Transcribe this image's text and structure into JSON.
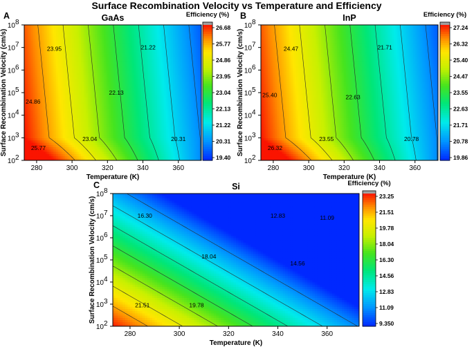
{
  "title": "Surface Recombination Velocity vs Temperature and Efficiency",
  "chart_data": [
    {
      "type": "heatmap",
      "panel_label": "A",
      "title": "GaAs",
      "xlabel": "Temperature (K)",
      "ylabel": "Surface Recombination Velocity (cm/s)",
      "xlim": [
        273,
        373
      ],
      "ylim_exp": [
        2,
        8
      ],
      "y_scale": "log",
      "x_ticks": [
        "280",
        "300",
        "320",
        "340",
        "360"
      ],
      "x_tick_values": [
        280,
        300,
        320,
        340,
        360
      ],
      "y_ticks": [
        {
          "base": "10",
          "exp": "2"
        },
        {
          "base": "10",
          "exp": "3"
        },
        {
          "base": "10",
          "exp": "4"
        },
        {
          "base": "10",
          "exp": "5"
        },
        {
          "base": "10",
          "exp": "6"
        },
        {
          "base": "10",
          "exp": "7"
        },
        {
          "base": "10",
          "exp": "8"
        }
      ],
      "colorbar_title": "Efficiency (%)",
      "colorbar_ticks": [
        "26.68",
        "25.77",
        "24.86",
        "23.95",
        "23.04",
        "22.13",
        "21.22",
        "20.31",
        "19.40"
      ],
      "zmin": 19.4,
      "zmax": 26.68,
      "model": {
        "z_hot": 26.68,
        "z_cold": 19.4,
        "low_s_boost": 1.3,
        "s_knee_exp": 2.9,
        "s_slope": 0.045
      },
      "contour_levels": [
        25.77,
        24.86,
        23.95,
        23.04,
        22.13,
        21.22,
        20.31
      ],
      "contour_labels": [
        {
          "text": "25.77",
          "x": 281,
          "y_exp": 2.55
        },
        {
          "text": "24.86",
          "x": 278,
          "y_exp": 4.6
        },
        {
          "text": "23.95",
          "x": 290,
          "y_exp": 6.95
        },
        {
          "text": "23.04",
          "x": 310,
          "y_exp": 2.95
        },
        {
          "text": "22.13",
          "x": 325,
          "y_exp": 5.0
        },
        {
          "text": "21.22",
          "x": 343,
          "y_exp": 7.0
        },
        {
          "text": "20.31",
          "x": 360,
          "y_exp": 2.95
        }
      ]
    },
    {
      "type": "heatmap",
      "panel_label": "B",
      "title": "InP",
      "xlabel": "Temperature (K)",
      "ylabel": "Surface Recombination Velocity (cm/s)",
      "xlim": [
        273,
        373
      ],
      "ylim_exp": [
        2,
        8
      ],
      "y_scale": "log",
      "x_ticks": [
        "280",
        "300",
        "320",
        "340",
        "360"
      ],
      "x_tick_values": [
        280,
        300,
        320,
        340,
        360
      ],
      "y_ticks": [
        {
          "base": "10",
          "exp": "2"
        },
        {
          "base": "10",
          "exp": "3"
        },
        {
          "base": "10",
          "exp": "4"
        },
        {
          "base": "10",
          "exp": "5"
        },
        {
          "base": "10",
          "exp": "6"
        },
        {
          "base": "10",
          "exp": "7"
        },
        {
          "base": "10",
          "exp": "8"
        }
      ],
      "colorbar_title": "Efficiency (%)",
      "colorbar_ticks": [
        "27.24",
        "26.32",
        "25.40",
        "24.47",
        "23.55",
        "22.63",
        "21.71",
        "20.78",
        "19.86"
      ],
      "zmin": 19.86,
      "zmax": 27.24,
      "model": {
        "z_hot": 27.24,
        "z_cold": 19.86,
        "low_s_boost": 1.3,
        "s_knee_exp": 2.9,
        "s_slope": 0.045
      },
      "contour_levels": [
        26.32,
        25.4,
        24.47,
        23.55,
        22.63,
        21.71,
        20.78
      ],
      "contour_labels": [
        {
          "text": "26.32",
          "x": 281,
          "y_exp": 2.55
        },
        {
          "text": "25.40",
          "x": 278,
          "y_exp": 4.9
        },
        {
          "text": "24.47",
          "x": 290,
          "y_exp": 6.95
        },
        {
          "text": "23.55",
          "x": 310,
          "y_exp": 2.95
        },
        {
          "text": "22.63",
          "x": 325,
          "y_exp": 4.8
        },
        {
          "text": "21.71",
          "x": 343,
          "y_exp": 7.0
        },
        {
          "text": "20.78",
          "x": 358,
          "y_exp": 2.95
        }
      ]
    },
    {
      "type": "heatmap",
      "panel_label": "C",
      "title": "Si",
      "xlabel": "Temperature (K)",
      "ylabel": "Surface Recombination Velocity (cm/s)",
      "xlim": [
        273,
        373
      ],
      "ylim_exp": [
        2,
        8
      ],
      "y_scale": "log",
      "x_ticks": [
        "280",
        "300",
        "320",
        "340",
        "360"
      ],
      "x_tick_values": [
        280,
        300,
        320,
        340,
        360
      ],
      "y_ticks": [
        {
          "base": "10",
          "exp": "2"
        },
        {
          "base": "10",
          "exp": "3"
        },
        {
          "base": "10",
          "exp": "4"
        },
        {
          "base": "10",
          "exp": "5"
        },
        {
          "base": "10",
          "exp": "6"
        },
        {
          "base": "10",
          "exp": "7"
        },
        {
          "base": "10",
          "exp": "8"
        }
      ],
      "colorbar_title": "Efficiency (%)",
      "colorbar_ticks": [
        "23.25",
        "21.51",
        "19.78",
        "18.04",
        "16.30",
        "14.56",
        "12.83",
        "11.09",
        "9.350"
      ],
      "zmin": 9.35,
      "zmax": 23.25,
      "model": {
        "z_hot": 23.25,
        "z_cold": 9.35,
        "low_s_boost": 0.0,
        "s_knee_exp": 2.0,
        "s_slope": 0.55
      },
      "contour_levels": [
        21.51,
        19.78,
        18.04,
        16.3,
        14.56,
        12.83,
        11.09
      ],
      "contour_labels": [
        {
          "text": "21.51",
          "x": 285,
          "y_exp": 2.95
        },
        {
          "text": "19.78",
          "x": 307,
          "y_exp": 2.95
        },
        {
          "text": "18.04",
          "x": 312,
          "y_exp": 5.15
        },
        {
          "text": "16.30",
          "x": 286,
          "y_exp": 7.0
        },
        {
          "text": "14.56",
          "x": 348,
          "y_exp": 4.85
        },
        {
          "text": "12.83",
          "x": 340,
          "y_exp": 7.0
        },
        {
          "text": "11.09",
          "x": 360,
          "y_exp": 6.9
        }
      ]
    }
  ]
}
